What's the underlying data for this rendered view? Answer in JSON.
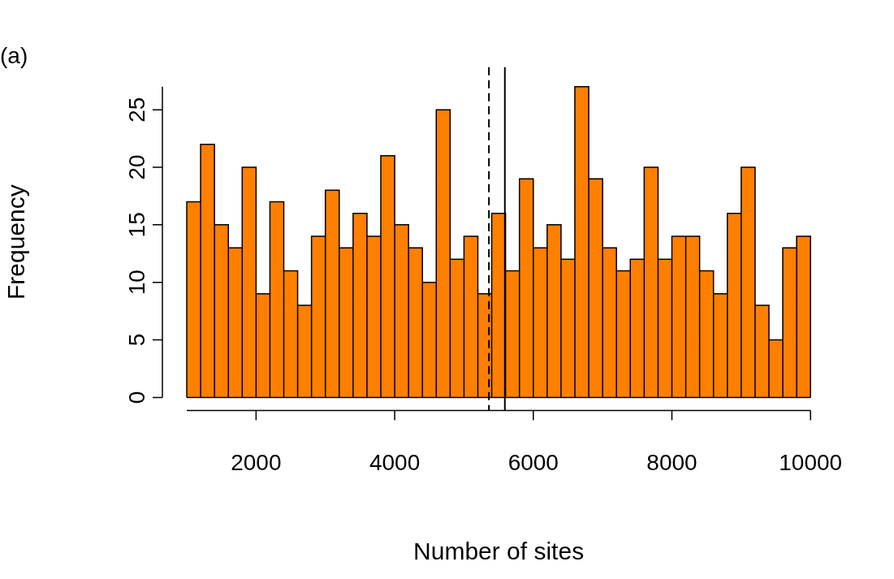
{
  "chart_data": {
    "type": "histogram",
    "title": "(a)",
    "xlabel": "Number of sites",
    "ylabel": "Frequency",
    "bins": [
      1000,
      1200,
      1400,
      1600,
      1800,
      2000,
      2200,
      2400,
      2600,
      2800,
      3000,
      3200,
      3400,
      3600,
      3800,
      4000,
      4200,
      4400,
      4600,
      4800,
      5000,
      5200,
      5400,
      5600,
      5800,
      6000,
      6200,
      6400,
      6600,
      6800,
      7000,
      7200,
      7400,
      7600,
      7800,
      8000,
      8200,
      8400,
      8600,
      8800,
      9000,
      9200,
      9400,
      9600,
      9800,
      10000
    ],
    "values": [
      17,
      22,
      15,
      13,
      20,
      9,
      17,
      11,
      8,
      14,
      18,
      13,
      16,
      14,
      21,
      15,
      13,
      10,
      25,
      12,
      14,
      9,
      16,
      11,
      19,
      13,
      15,
      12,
      27,
      19,
      13,
      11,
      12,
      20,
      12,
      14,
      14,
      11,
      9,
      16,
      20,
      8,
      5,
      13,
      14
    ],
    "color": "#ff7f00",
    "xlim": [
      1000,
      10000
    ],
    "ylim": [
      0,
      27
    ],
    "xticks": [
      2000,
      4000,
      6000,
      8000,
      10000
    ],
    "yticks": [
      0,
      5,
      10,
      15,
      20,
      25
    ],
    "grid": false,
    "legend": false,
    "ref_lines": [
      {
        "axis": "x",
        "value": 5360,
        "line_style": "dashed",
        "color": "#000000"
      },
      {
        "axis": "x",
        "value": 5590,
        "line_style": "solid",
        "color": "#000000"
      }
    ]
  }
}
